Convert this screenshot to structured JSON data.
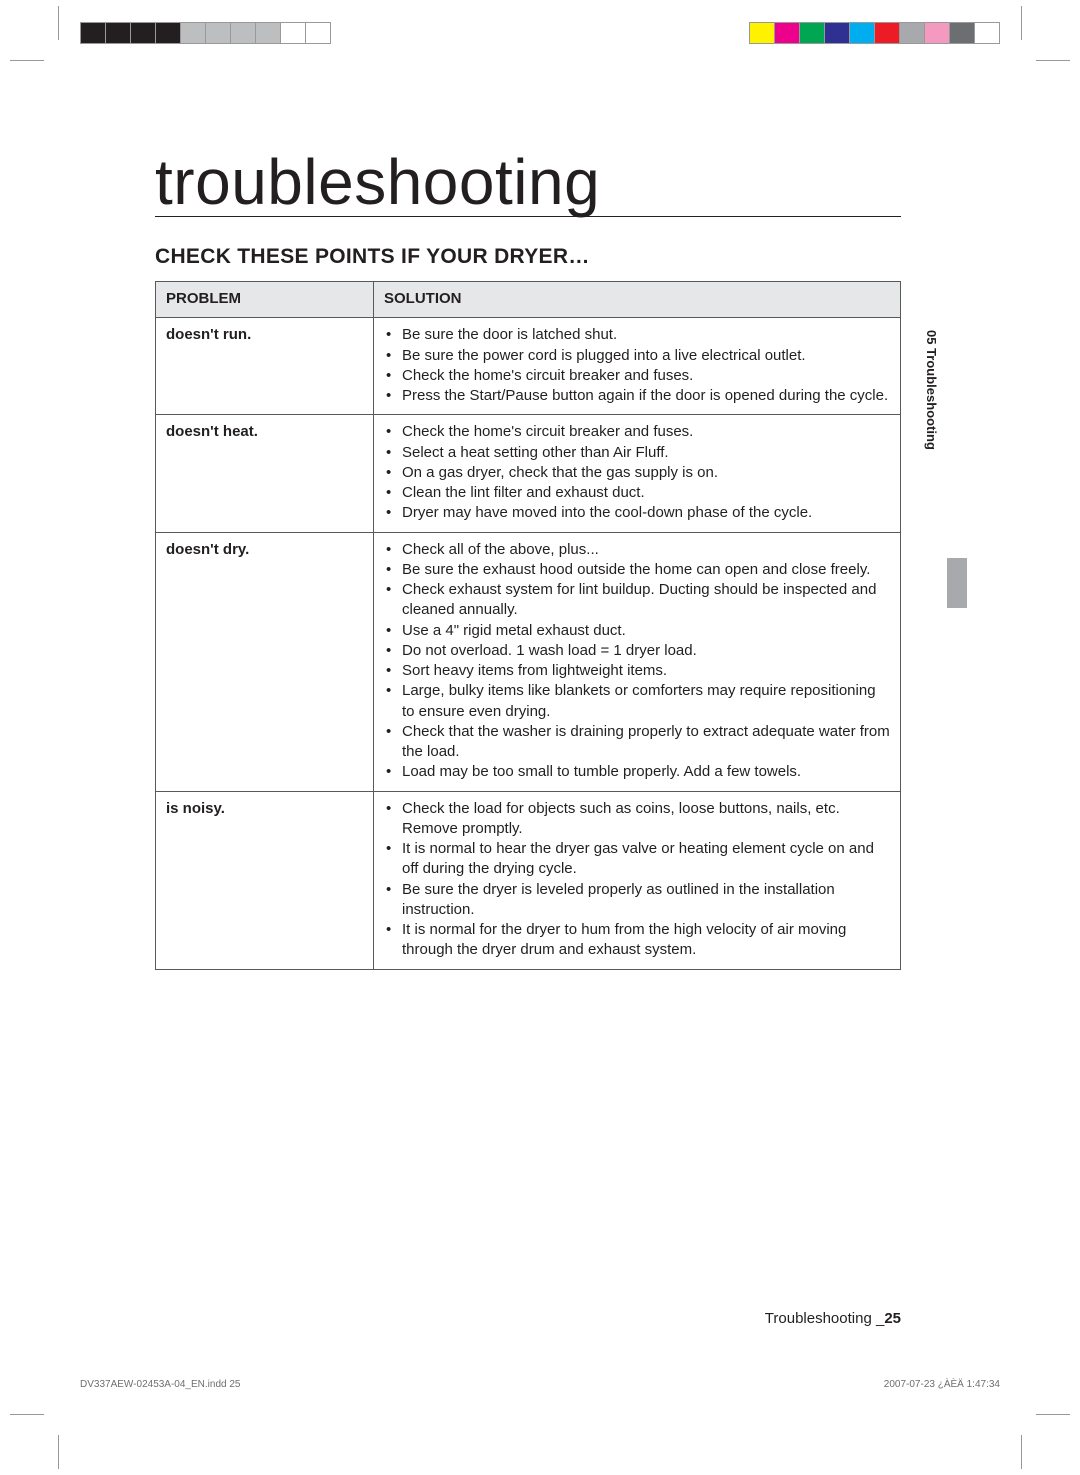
{
  "registration": {
    "left_colors": [
      "#231f20",
      "#231f20",
      "#231f20",
      "#231f20",
      "#bcbec0",
      "#bcbec0",
      "#bcbec0",
      "#bcbec0",
      "#ffffff",
      "#ffffff"
    ],
    "right_colors": [
      "#fff200",
      "#ec008c",
      "#00a651",
      "#2e3192",
      "#00aeef",
      "#ed1c24",
      "#a7a9ac",
      "#f49ac1",
      "#6d6e71",
      "#ffffff"
    ]
  },
  "title": "troubleshooting",
  "section_title": "CHECK THESE POINTS IF YOUR DRYER…",
  "table": {
    "headers": {
      "problem": "PROBLEM",
      "solution": "SOLUTION"
    },
    "rows": [
      {
        "problem": "doesn't run.",
        "solutions": [
          "Be sure the door is latched shut.",
          "Be sure the power cord is plugged into a live electrical outlet.",
          "Check the home's circuit breaker and fuses.",
          "Press the Start/Pause button again if the door is opened during the cycle."
        ]
      },
      {
        "problem": "doesn't heat.",
        "solutions": [
          "Check the home's circuit breaker and fuses.",
          "Select a heat setting other than Air Fluff.",
          "On a gas dryer, check that the gas supply is on.",
          "Clean the lint filter and exhaust duct.",
          "Dryer may have moved into the cool-down phase of the cycle."
        ]
      },
      {
        "problem": "doesn't dry.",
        "solutions": [
          "Check all of the above, plus...",
          "Be sure the exhaust hood outside the home can open and close freely.",
          "Check exhaust system for lint buildup. Ducting should be inspected and cleaned annually.",
          "Use a 4\" rigid metal exhaust duct.",
          "Do not overload. 1 wash load = 1 dryer load.",
          "Sort heavy items from lightweight items.",
          "Large, bulky items like blankets or comforters may require repositioning to ensure even drying.",
          "Check that the washer is draining properly to extract adequate water from the load.",
          "Load may be too small to tumble properly. Add a few towels."
        ]
      },
      {
        "problem": "is noisy.",
        "solutions": [
          "Check the load for objects such as coins, loose buttons, nails, etc. Remove promptly.",
          "It is normal to hear the dryer gas valve or heating element cycle on and off during the drying cycle.",
          "Be sure the dryer is leveled properly as outlined in the installation instruction.",
          "It is normal for the dryer to hum from the high velocity of air moving through the dryer drum and exhaust system."
        ]
      }
    ]
  },
  "side_tab": "05 Troubleshooting",
  "footer": {
    "label": "Troubleshooting _",
    "page": "25"
  },
  "slug": {
    "left": "DV337AEW-02453A-04_EN.indd   25",
    "right": "2007-07-23   ¿ÀÈÄ 1:47:34"
  },
  "side_marker_color": "#a7a9ac"
}
